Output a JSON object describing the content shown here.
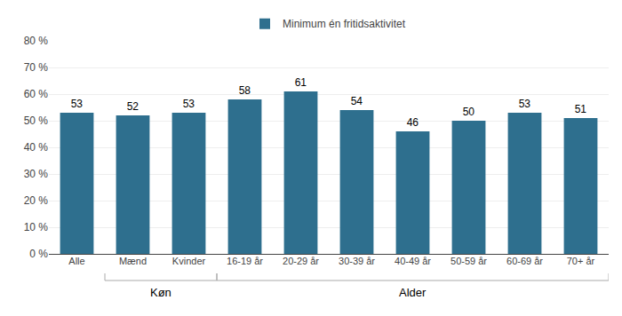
{
  "chart_data": {
    "type": "bar",
    "categories": [
      "Alle",
      "Mænd",
      "Kvinder",
      "16-19 år",
      "20-29 år",
      "30-39 år",
      "40-49 år",
      "50-59 år",
      "60-69 år",
      "70+ år"
    ],
    "series": [
      {
        "name": "Minimum én fritidsaktivitet",
        "color": "#2e6f8e",
        "values": [
          53,
          52,
          53,
          58,
          61,
          54,
          46,
          50,
          53,
          51
        ]
      }
    ],
    "ylim": [
      0,
      80
    ],
    "yticks": [
      {
        "value": 0,
        "label": "0 %"
      },
      {
        "value": 10,
        "label": "10 %"
      },
      {
        "value": 20,
        "label": "20 %"
      },
      {
        "value": 30,
        "label": "30 %"
      },
      {
        "value": 40,
        "label": "40 %"
      },
      {
        "value": 50,
        "label": "50 %"
      },
      {
        "value": 60,
        "label": "60 %"
      },
      {
        "value": 70,
        "label": "70 %"
      },
      {
        "value": 80,
        "label": "80 %"
      }
    ],
    "grid": true,
    "legend": "top",
    "data_labels": true,
    "annotations": [
      {
        "text": "Køn",
        "categories": [
          "Mænd",
          "Kvinder"
        ]
      },
      {
        "text": "Alder",
        "categories": [
          "16-19 år",
          "20-29 år",
          "30-39 år",
          "40-49 år",
          "50-59 år",
          "60-69 år",
          "70+ år"
        ]
      }
    ]
  }
}
